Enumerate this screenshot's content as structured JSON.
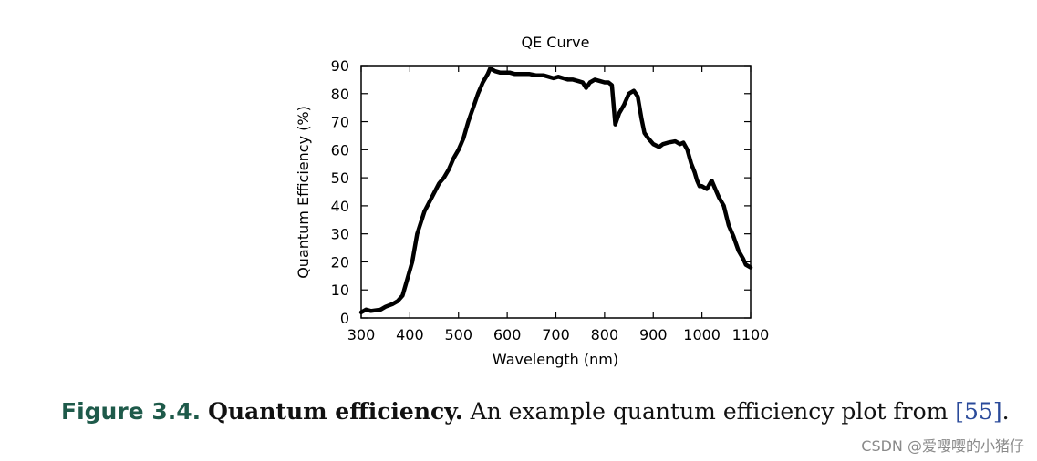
{
  "chart_data": {
    "type": "line",
    "title": "QE Curve",
    "xlabel": "Wavelength (nm)",
    "ylabel": "Quantum Efficiency (%)",
    "xlim": [
      300,
      1100
    ],
    "ylim": [
      0,
      90
    ],
    "xticks": [
      300,
      400,
      500,
      600,
      700,
      800,
      900,
      1000,
      1100
    ],
    "yticks": [
      0,
      10,
      20,
      30,
      40,
      50,
      60,
      70,
      80,
      90
    ],
    "grid": false,
    "series": [
      {
        "x": [
          300,
          310,
          320,
          340,
          350,
          365,
          375,
          385,
          395,
          405,
          415,
          430,
          445,
          460,
          470,
          480,
          490,
          500,
          510,
          520,
          530,
          540,
          550,
          560,
          565,
          575,
          585,
          595,
          605,
          615,
          630,
          645,
          660,
          675,
          685,
          695,
          705,
          715,
          725,
          735,
          745,
          755,
          762,
          770,
          780,
          790,
          800,
          808,
          815,
          822,
          830,
          840,
          850,
          860,
          868,
          876,
          882,
          890,
          900,
          912,
          920,
          930,
          945,
          955,
          962,
          970,
          978,
          985,
          990,
          995,
          1000,
          1010,
          1020,
          1030,
          1035,
          1045,
          1055,
          1065,
          1075,
          1085,
          1090,
          1100
        ],
        "y": [
          2,
          3,
          2.5,
          3,
          4,
          5,
          6,
          8,
          14,
          20,
          30,
          38,
          43,
          48,
          50,
          53,
          57,
          60,
          64,
          70,
          75,
          80,
          84,
          87,
          89,
          88,
          87.5,
          87.5,
          87.5,
          87,
          87,
          87,
          86.5,
          86.5,
          86,
          85.5,
          86,
          85.5,
          85,
          85,
          84.5,
          84,
          82,
          84,
          85,
          84.5,
          84,
          84,
          83,
          69,
          73,
          76,
          80,
          81,
          79,
          71,
          66,
          64,
          62,
          61,
          62,
          62.5,
          63,
          62,
          62.5,
          60,
          55,
          52,
          49,
          47,
          47,
          46,
          49,
          45,
          43,
          40,
          33,
          29,
          24,
          21,
          19,
          18
        ]
      }
    ]
  },
  "caption": {
    "figure_number": "Figure 3.4.",
    "figure_title": "Quantum efficiency.",
    "text_before_cite": "An example quantum efficiency plot from ",
    "citation": "[55]",
    "text_after_cite": "."
  },
  "watermark": "CSDN @爱嘤嘤的小猪仔"
}
